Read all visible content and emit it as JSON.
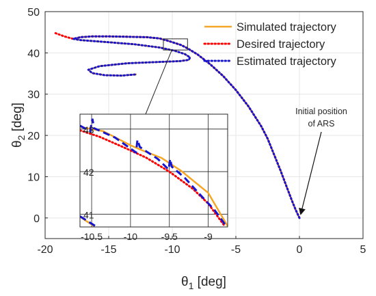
{
  "chart_data": {
    "type": "line",
    "xlabel": "θ1 [deg]",
    "ylabel": "θ2 [deg]",
    "xlim": [
      -20,
      5
    ],
    "ylim": [
      -5,
      50
    ],
    "xticks": [
      -20,
      -15,
      -10,
      -5,
      0,
      5
    ],
    "yticks": [
      0,
      10,
      20,
      30,
      40,
      50
    ],
    "grid": true,
    "legend_position": "top-right",
    "colors": {
      "simulated": "#F5A623",
      "desired": "#FF0000",
      "estimated": "#1515D0"
    },
    "series": [
      {
        "name": "Simulated trajectory",
        "style": "solid",
        "color": "#F5A623",
        "x": [
          0,
          -0.3,
          -0.6,
          -1.0,
          -1.5,
          -2.0,
          -2.5,
          -3.0,
          -4.0,
          -5.0,
          -6.0,
          -7.0,
          -8.0,
          -8.8,
          -9.3,
          -9.7,
          -10.3,
          -11.0,
          -12.0,
          -13.5,
          -15.0,
          -16.3,
          -17.2,
          -17.8,
          -17.2,
          -15.5,
          -13.0,
          -11.0,
          -9.8,
          -9.0,
          -8.6,
          -8.7,
          -9.4,
          -11.0,
          -13.5,
          -15.7,
          -16.6,
          -16.3,
          -15.3,
          -14.0,
          -12.8
        ],
        "y": [
          0,
          2.0,
          4.3,
          7.5,
          11.6,
          15.4,
          19.2,
          22.2,
          27.0,
          31.0,
          34.4,
          37.2,
          39.6,
          41.1,
          41.9,
          42.3,
          42.9,
          43.5,
          43.8,
          43.9,
          44.0,
          44.0,
          43.8,
          43.4,
          43.1,
          42.7,
          42.1,
          41.3,
          40.5,
          39.7,
          38.9,
          38.3,
          38.0,
          37.8,
          37.5,
          36.8,
          35.9,
          35.1,
          34.6,
          34.5,
          34.8
        ]
      },
      {
        "name": "Desired trajectory",
        "style": "dotted",
        "color": "#FF0000",
        "x": [
          0,
          -0.3,
          -0.6,
          -1.0,
          -1.5,
          -2.0,
          -2.5,
          -3.0,
          -4.0,
          -5.0,
          -6.0,
          -7.0,
          -8.0,
          -8.8,
          -9.3,
          -9.7,
          -10.3,
          -11.0,
          -12.0,
          -13.5,
          -15.0,
          -16.3,
          -17.2,
          -17.8,
          -18.5,
          -19.2
        ],
        "y": [
          0,
          2.0,
          4.3,
          7.5,
          11.6,
          15.4,
          19.2,
          22.2,
          27.0,
          31.0,
          34.4,
          37.2,
          39.6,
          41.1,
          41.9,
          42.3,
          42.9,
          43.5,
          43.8,
          43.9,
          44.0,
          44.0,
          43.8,
          43.4,
          44.0,
          44.8
        ]
      },
      {
        "name": "Estimated trajectory",
        "style": "dotted",
        "color": "#1515D0",
        "x": [
          0,
          -0.3,
          -0.6,
          -1.0,
          -1.5,
          -2.0,
          -2.5,
          -3.0,
          -4.0,
          -5.0,
          -6.0,
          -7.0,
          -8.0,
          -8.8,
          -9.3,
          -9.7,
          -10.3,
          -11.0,
          -12.0,
          -13.5,
          -15.0,
          -16.3,
          -17.2,
          -17.8,
          -17.2,
          -15.5,
          -13.0,
          -11.0,
          -9.8,
          -9.0,
          -8.6,
          -8.7,
          -9.4,
          -11.0,
          -13.5,
          -15.7,
          -16.6,
          -16.3,
          -15.3,
          -14.0,
          -12.8
        ],
        "y": [
          0,
          2.0,
          4.3,
          7.5,
          11.6,
          15.4,
          19.2,
          22.2,
          27.0,
          31.0,
          34.4,
          37.2,
          39.6,
          41.1,
          41.9,
          42.3,
          42.9,
          43.5,
          43.8,
          43.9,
          44.0,
          44.0,
          43.8,
          43.4,
          43.1,
          42.7,
          42.1,
          41.3,
          40.5,
          39.7,
          38.9,
          38.3,
          38.0,
          37.8,
          37.5,
          36.8,
          35.9,
          35.1,
          34.6,
          34.5,
          34.8
        ]
      }
    ],
    "zoom_box": {
      "xlim": [
        -10.7,
        -8.8
      ],
      "ylim": [
        40.7,
        43.4
      ]
    },
    "inset": {
      "xlim": [
        -10.65,
        -8.75
      ],
      "ylim": [
        40.7,
        43.35
      ],
      "xticks": [
        -10.5,
        -10,
        -9.5,
        -9
      ],
      "xticklabels": [
        "-10.5",
        "-10",
        "-9.5",
        "-9"
      ],
      "yticks": [
        41,
        42,
        43
      ],
      "grid": true,
      "series": [
        {
          "name": "Simulated trajectory",
          "x": [
            -10.65,
            -10.35,
            -10.0,
            -9.85,
            -9.6,
            -9.35,
            -9.0,
            -8.75
          ],
          "y": [
            43.05,
            42.95,
            42.62,
            42.5,
            42.32,
            42.02,
            41.5,
            40.72
          ]
        },
        {
          "name": "Desired trajectory",
          "x": [
            -10.65,
            -10.4,
            -10.1,
            -9.8,
            -9.5,
            -9.2,
            -9.0,
            -8.8
          ],
          "y": [
            42.97,
            42.82,
            42.58,
            42.33,
            42.0,
            41.6,
            41.25,
            40.75
          ]
        },
        {
          "name": "Estimated trajectory",
          "x": [
            -10.65,
            -10.52,
            -10.49,
            -10.47,
            -10.2,
            -9.93,
            -9.91,
            -9.88,
            -9.8,
            -9.65,
            -9.51,
            -9.49,
            -9.47,
            -9.3,
            -9.1,
            -8.92,
            -8.78
          ],
          "y": [
            43.08,
            42.95,
            43.24,
            43.02,
            42.8,
            42.45,
            42.75,
            42.58,
            42.48,
            42.3,
            42.05,
            42.3,
            42.12,
            41.85,
            41.45,
            41.1,
            40.75
          ]
        },
        {
          "name": "Estimated trajectory (lower segment)",
          "x": [
            -10.65,
            -10.45
          ],
          "y": [
            40.95,
            40.72
          ]
        },
        {
          "name": "Simulated trajectory (lower segment)",
          "x": [
            -10.65,
            -10.47
          ],
          "y": [
            40.94,
            40.72
          ]
        }
      ]
    },
    "annotation": {
      "text_line1": "Initial position",
      "text_line2": "of ARS",
      "x": 0,
      "y": 0
    }
  }
}
